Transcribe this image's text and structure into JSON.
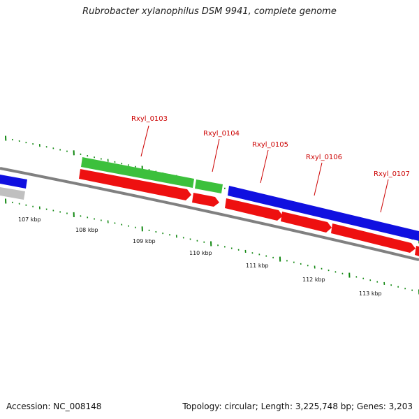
{
  "title": "Rubrobacter xylanophilus DSM 9941, complete genome",
  "accession": "Accession: NC_008148",
  "summary": "Topology: circular; Length: 3,225,748 bp; Genes: 3,203",
  "kbp_labels": [
    "107 kbp",
    "108 kbp",
    "109 kbp",
    "110 kbp",
    "111 kbp",
    "112 kbp",
    "113 kbp"
  ],
  "gene_labels": [
    "Rxyl_0103",
    "Rxyl_0104",
    "Rxyl_0105",
    "Rxyl_0106",
    "Rxyl_0107"
  ],
  "colors": {
    "backbone": "#808080",
    "forward_gene": "#1010e0",
    "green_gene": "#3cc03c",
    "reverse_gene": "#ee1010",
    "grey_gene": "#c0c0c0",
    "tick": "#118811",
    "label_red": "#cc0000"
  }
}
